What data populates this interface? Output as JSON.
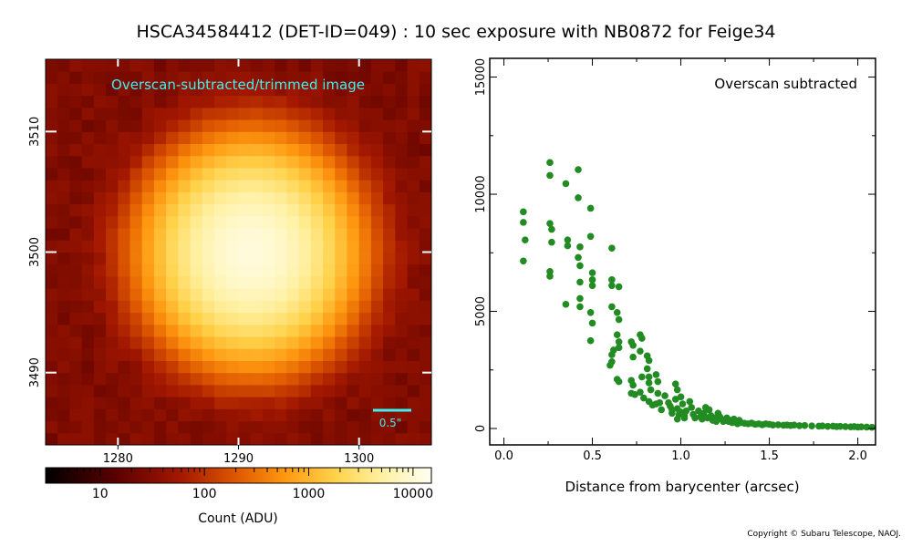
{
  "title": "HSCA34584412 (DET-ID=049) :  10 sec exposure with NB0872 for Feige34",
  "copyright": "Copyright © Subaru Telescope, NAOJ.",
  "chart_data": [
    {
      "type": "heatmap",
      "annotation": "Overscan-subtracted/trimmed image",
      "scale_label": "0.5\"",
      "x_ticks": [
        "1280",
        "1290",
        "1300"
      ],
      "y_ticks": [
        "3510",
        "3500",
        "3490"
      ],
      "x_range": [
        1274,
        1306
      ],
      "y_range": [
        3484,
        3516
      ],
      "peak": {
        "x": 1291,
        "y": 3500,
        "value": 11000
      },
      "background": 30,
      "colorbar": {
        "ticks": [
          "10",
          "100",
          "1000",
          "10000"
        ],
        "label": "Count (ADU)",
        "range": [
          3,
          15000
        ],
        "scale": "log"
      },
      "colors": {
        "annotation": "#3ff0f0",
        "scalebar": "#3ff0f0"
      }
    },
    {
      "type": "scatter",
      "annotation": "Overscan subtracted",
      "xlabel": "Distance from barycenter (arcsec)",
      "ylabel": "",
      "xlim": [
        -0.08,
        2.1
      ],
      "ylim": [
        -700,
        15800
      ],
      "x_ticks": [
        "0.0",
        "0.5",
        "1.0",
        "1.5",
        "2.0"
      ],
      "y_ticks": [
        "0",
        "5000",
        "10000",
        "15000"
      ],
      "color": "#228b22",
      "points": [
        [
          0.11,
          9250
        ],
        [
          0.11,
          8800
        ],
        [
          0.12,
          8050
        ],
        [
          0.11,
          7150
        ],
        [
          0.26,
          11350
        ],
        [
          0.26,
          10800
        ],
        [
          0.26,
          8750
        ],
        [
          0.27,
          8500
        ],
        [
          0.27,
          7950
        ],
        [
          0.26,
          6700
        ],
        [
          0.26,
          6500
        ],
        [
          0.35,
          10450
        ],
        [
          0.36,
          8050
        ],
        [
          0.36,
          7800
        ],
        [
          0.35,
          5300
        ],
        [
          0.42,
          11050
        ],
        [
          0.42,
          9850
        ],
        [
          0.42,
          7300
        ],
        [
          0.43,
          7750
        ],
        [
          0.43,
          6950
        ],
        [
          0.43,
          6250
        ],
        [
          0.43,
          5550
        ],
        [
          0.43,
          5200
        ],
        [
          0.49,
          9400
        ],
        [
          0.49,
          8200
        ],
        [
          0.5,
          6650
        ],
        [
          0.5,
          6350
        ],
        [
          0.5,
          6100
        ],
        [
          0.49,
          4950
        ],
        [
          0.5,
          4500
        ],
        [
          0.49,
          3750
        ],
        [
          0.61,
          7700
        ],
        [
          0.61,
          6350
        ],
        [
          0.61,
          6100
        ],
        [
          0.61,
          5200
        ],
        [
          0.62,
          3350
        ],
        [
          0.61,
          3150
        ],
        [
          0.61,
          2850
        ],
        [
          0.6,
          2700
        ],
        [
          0.65,
          6050
        ],
        [
          0.64,
          4950
        ],
        [
          0.65,
          4650
        ],
        [
          0.64,
          4000
        ],
        [
          0.65,
          3700
        ],
        [
          0.65,
          3450
        ],
        [
          0.64,
          2100
        ],
        [
          0.65,
          2000
        ],
        [
          0.72,
          3700
        ],
        [
          0.73,
          3550
        ],
        [
          0.73,
          3050
        ],
        [
          0.72,
          2050
        ],
        [
          0.73,
          1850
        ],
        [
          0.72,
          1500
        ],
        [
          0.74,
          1450
        ],
        [
          0.77,
          4000
        ],
        [
          0.78,
          3850
        ],
        [
          0.77,
          3300
        ],
        [
          0.78,
          2200
        ],
        [
          0.77,
          1550
        ],
        [
          0.79,
          1300
        ],
        [
          0.81,
          3100
        ],
        [
          0.82,
          2900
        ],
        [
          0.81,
          2550
        ],
        [
          0.82,
          2200
        ],
        [
          0.82,
          1950
        ],
        [
          0.83,
          1650
        ],
        [
          0.82,
          1150
        ],
        [
          0.84,
          1000
        ],
        [
          0.86,
          2300
        ],
        [
          0.87,
          2000
        ],
        [
          0.87,
          1500
        ],
        [
          0.86,
          1050
        ],
        [
          0.88,
          1100
        ],
        [
          0.89,
          800
        ],
        [
          0.91,
          1400
        ],
        [
          0.93,
          1100
        ],
        [
          0.94,
          950
        ],
        [
          0.95,
          800
        ],
        [
          0.95,
          650
        ],
        [
          0.97,
          1900
        ],
        [
          0.98,
          1650
        ],
        [
          0.97,
          1250
        ],
        [
          0.98,
          850
        ],
        [
          0.99,
          600
        ],
        [
          0.98,
          400
        ],
        [
          1.0,
          1350
        ],
        [
          1.01,
          1050
        ],
        [
          1.0,
          700
        ],
        [
          1.02,
          550
        ],
        [
          1.03,
          750
        ],
        [
          1.02,
          450
        ],
        [
          1.05,
          1150
        ],
        [
          1.06,
          900
        ],
        [
          1.07,
          600
        ],
        [
          1.08,
          450
        ],
        [
          1.1,
          750
        ],
        [
          1.11,
          500
        ],
        [
          1.12,
          400
        ],
        [
          1.13,
          650
        ],
        [
          1.14,
          900
        ],
        [
          1.15,
          450
        ],
        [
          1.16,
          800
        ],
        [
          1.17,
          550
        ],
        [
          1.18,
          350
        ],
        [
          1.19,
          450
        ],
        [
          1.2,
          300
        ],
        [
          1.21,
          650
        ],
        [
          1.22,
          500
        ],
        [
          1.23,
          400
        ],
        [
          1.24,
          300
        ],
        [
          1.26,
          450
        ],
        [
          1.27,
          300
        ],
        [
          1.28,
          350
        ],
        [
          1.29,
          250
        ],
        [
          1.3,
          400
        ],
        [
          1.31,
          300
        ],
        [
          1.32,
          200
        ],
        [
          1.33,
          350
        ],
        [
          1.34,
          250
        ],
        [
          1.36,
          220
        ],
        [
          1.38,
          200
        ],
        [
          1.4,
          230
        ],
        [
          1.42,
          180
        ],
        [
          1.44,
          200
        ],
        [
          1.46,
          160
        ],
        [
          1.48,
          200
        ],
        [
          1.5,
          180
        ],
        [
          1.52,
          150
        ],
        [
          1.55,
          160
        ],
        [
          1.58,
          140
        ],
        [
          1.6,
          150
        ],
        [
          1.62,
          130
        ],
        [
          1.64,
          150
        ],
        [
          1.67,
          120
        ],
        [
          1.7,
          130
        ],
        [
          1.74,
          110
        ],
        [
          1.78,
          100
        ],
        [
          1.8,
          110
        ],
        [
          1.83,
          90
        ],
        [
          1.86,
          100
        ],
        [
          1.88,
          80
        ],
        [
          1.9,
          90
        ],
        [
          1.93,
          80
        ],
        [
          1.96,
          70
        ],
        [
          1.98,
          80
        ],
        [
          2.0,
          60
        ],
        [
          2.02,
          70
        ],
        [
          2.05,
          60
        ],
        [
          2.08,
          50
        ]
      ]
    }
  ]
}
